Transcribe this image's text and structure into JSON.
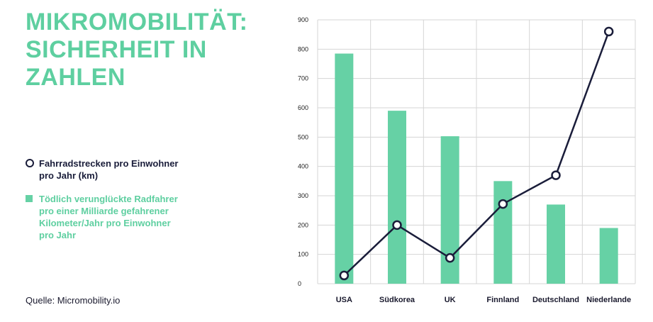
{
  "title": "MIKROMOBILITÄT: SICHERHEIT IN ZAHLEN",
  "legend": {
    "line_label": "Fahrradstrecken pro Einwohner pro Jahr (km)",
    "bar_label": "Tödlich verunglückte Radfahrer pro einer Milliarde gefahrener Kilometer/Jahr pro Einwohner pro Jahr"
  },
  "source": "Quelle: Micromobility.io",
  "colors": {
    "accent": "#5ecfa0",
    "bar": "#66d1a5",
    "line": "#1a1d3a",
    "grid": "#d5d5d5"
  },
  "chart_data": {
    "type": "bar",
    "categories": [
      "USA",
      "Südkorea",
      "UK",
      "Finnland",
      "Deutschland",
      "Niederlande"
    ],
    "series": [
      {
        "name": "Tödlich verunglückte Radfahrer pro einer Milliarde gefahrener Kilometer/Jahr pro Einwohner pro Jahr",
        "type": "bar",
        "values": [
          785,
          590,
          503,
          350,
          270,
          190
        ]
      },
      {
        "name": "Fahrradstrecken pro Einwohner pro Jahr (km)",
        "type": "line",
        "values": [
          28,
          200,
          88,
          272,
          370,
          860
        ]
      }
    ],
    "ylim": [
      0,
      900
    ],
    "yticks": [
      "0",
      "100",
      "200",
      "300",
      "400",
      "500",
      "600",
      "700",
      "800",
      "900"
    ],
    "title": "MIKROMOBILITÄT: SICHERHEIT IN ZAHLEN",
    "xlabel": "",
    "ylabel": "",
    "grid": true,
    "legend_position": "left"
  }
}
